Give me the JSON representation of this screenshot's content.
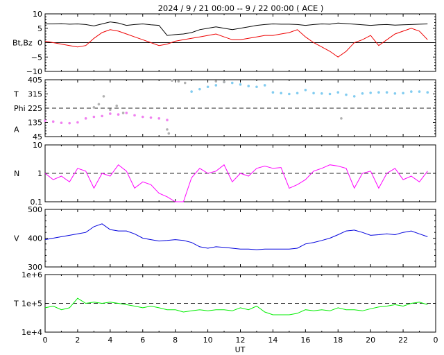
{
  "title": "2024 /  9 / 21   00:00 --  9 / 22   00:00 ( ACE )",
  "xlabel": "UT",
  "chart_data": [
    {
      "type": "line",
      "ylabel": "Bt,Bz",
      "ylim": [
        -10,
        10
      ],
      "yticks": [
        "10",
        "5",
        "0",
        "−5",
        "−10"
      ],
      "reference_line": 0,
      "series": [
        {
          "name": "Bt",
          "color": "#000000",
          "x": [
            0,
            0.5,
            1,
            1.5,
            2,
            2.5,
            3,
            3.5,
            4,
            4.5,
            5,
            5.5,
            6,
            6.5,
            7,
            7.5,
            8,
            8.5,
            9,
            9.5,
            10,
            10.5,
            11,
            11.5,
            12,
            12.5,
            13,
            13.5,
            14,
            14.5,
            15,
            15.5,
            16,
            16.5,
            17,
            17.5,
            18,
            18.5,
            19,
            19.5,
            20,
            20.5,
            21,
            21.5,
            22,
            22.5,
            23,
            23.5
          ],
          "values": [
            6.5,
            6.5,
            6.6,
            6.4,
            6.5,
            6.3,
            5.8,
            6.5,
            7.2,
            6.8,
            6.0,
            6.3,
            6.5,
            6.2,
            6.0,
            2.5,
            2.8,
            3.0,
            3.5,
            4.5,
            5.0,
            5.5,
            5.0,
            4.5,
            5.0,
            5.5,
            6.0,
            6.3,
            6.5,
            6.4,
            6.4,
            6.3,
            6.0,
            6.3,
            6.5,
            6.4,
            6.8,
            6.6,
            6.4,
            6.2,
            6.0,
            6.2,
            6.3,
            6.1,
            6.2,
            6.3,
            6.4,
            6.5
          ]
        },
        {
          "name": "Bz",
          "color": "#ee0000",
          "x": [
            0,
            0.5,
            1,
            1.5,
            2,
            2.5,
            3,
            3.5,
            4,
            4.5,
            5,
            5.5,
            6,
            6.5,
            7,
            7.5,
            8,
            8.5,
            9,
            9.5,
            10,
            10.5,
            11,
            11.5,
            12,
            12.5,
            13,
            13.5,
            14,
            14.5,
            15,
            15.5,
            16,
            16.5,
            17,
            17.5,
            18,
            18.5,
            19,
            19.5,
            20,
            20.5,
            21,
            21.5,
            22,
            22.5,
            23,
            23.5
          ],
          "values": [
            0.5,
            0.0,
            -0.5,
            -1.0,
            -1.5,
            -1.0,
            1.5,
            3.5,
            4.5,
            4.0,
            3.0,
            2.0,
            1.0,
            0.0,
            -1.0,
            -0.5,
            0.5,
            1.0,
            1.5,
            2.0,
            2.5,
            3.0,
            2.0,
            1.0,
            1.0,
            1.5,
            2.0,
            2.5,
            2.5,
            3.0,
            3.5,
            4.5,
            2.0,
            0.0,
            -1.5,
            -3.0,
            -5.0,
            -3.0,
            0.0,
            1.0,
            2.5,
            -1.0,
            1.0,
            3.0,
            4.0,
            5.0,
            4.0,
            1.0
          ]
        }
      ]
    },
    {
      "type": "scatter",
      "ylabel_parts": [
        "T",
        "Phi",
        "A"
      ],
      "ylim": [
        45,
        405
      ],
      "yticks": [
        "405",
        "315",
        "225",
        "135",
        "45"
      ],
      "reference_line": 225,
      "series": [
        {
          "name": "Phi",
          "color": "#82ccf0",
          "x": [
            9,
            9.5,
            10,
            10.5,
            11,
            11.5,
            12,
            12.5,
            13,
            13.5,
            14,
            14.5,
            15,
            15.5,
            16,
            16.5,
            17,
            17.5,
            18,
            18.5,
            19,
            19.5,
            20,
            20.5,
            21,
            21.5,
            22,
            22.5,
            23,
            23.5
          ],
          "values": [
            330,
            345,
            360,
            370,
            390,
            385,
            375,
            365,
            360,
            370,
            325,
            320,
            315,
            320,
            340,
            320,
            318,
            315,
            325,
            310,
            300,
            318,
            322,
            325,
            325,
            318,
            320,
            330,
            330,
            325
          ]
        },
        {
          "name": "Phi",
          "color": "#f080f0",
          "x": [
            0,
            0.5,
            1,
            1.5,
            2,
            2.5,
            3,
            3.5,
            4,
            4.5,
            5,
            5.5,
            6,
            6.5,
            7,
            7.5
          ],
          "values": [
            145,
            140,
            132,
            130,
            135,
            160,
            170,
            175,
            190,
            185,
            195,
            180,
            170,
            165,
            160,
            150
          ]
        },
        {
          "name": "Phi",
          "color": "#b0b0b0",
          "x": [
            3,
            3.3,
            3.6,
            4,
            4.4,
            4.8,
            7.5,
            7.6,
            7.8,
            8.2,
            8.6,
            10.5,
            11,
            18.2
          ],
          "values": [
            230,
            250,
            300,
            215,
            240,
            195,
            90,
            65,
            400,
            395,
            385,
            395,
            390,
            160
          ]
        }
      ]
    },
    {
      "type": "line",
      "ylabel": "N",
      "yscale": "log",
      "ylim": [
        0.1,
        10
      ],
      "yticks": [
        "10",
        "1",
        "0.1"
      ],
      "reference_line": 1,
      "series": [
        {
          "name": "N",
          "color": "#ff00ff",
          "x": [
            0,
            0.5,
            1,
            1.5,
            2,
            2.5,
            3,
            3.5,
            4,
            4.5,
            5,
            5.5,
            6,
            6.5,
            7,
            7.5,
            8,
            8.5,
            9,
            9.5,
            10,
            10.5,
            11,
            11.5,
            12,
            12.5,
            13,
            13.5,
            14,
            14.5,
            15,
            15.5,
            16,
            16.5,
            17,
            17.5,
            18,
            18.5,
            19,
            19.5,
            20,
            20.5,
            21,
            21.5,
            22,
            22.5,
            23,
            23.5
          ],
          "values": [
            1.0,
            0.6,
            0.8,
            0.5,
            1.5,
            1.2,
            0.3,
            1.0,
            0.8,
            2.0,
            1.2,
            0.3,
            0.5,
            0.4,
            0.2,
            0.15,
            0.1,
            0.1,
            0.7,
            1.5,
            1.0,
            1.2,
            2.0,
            0.5,
            1.0,
            0.8,
            1.5,
            1.8,
            1.5,
            1.6,
            0.3,
            0.4,
            0.6,
            1.2,
            1.5,
            2.0,
            1.8,
            1.5,
            0.3,
            1.0,
            1.2,
            0.3,
            1.0,
            1.5,
            0.6,
            0.8,
            0.5,
            1.2
          ]
        }
      ]
    },
    {
      "type": "line",
      "ylabel": "V",
      "ylim": [
        300,
        500
      ],
      "yticks": [
        "500",
        "400",
        "300"
      ],
      "series": [
        {
          "name": "V",
          "color": "#0000dd",
          "x": [
            0,
            0.5,
            1,
            1.5,
            2,
            2.5,
            3,
            3.5,
            4,
            4.5,
            5,
            5.5,
            6,
            6.5,
            7,
            7.5,
            8,
            8.5,
            9,
            9.5,
            10,
            10.5,
            11,
            11.5,
            12,
            12.5,
            13,
            13.5,
            14,
            14.5,
            15,
            15.5,
            16,
            16.5,
            17,
            17.5,
            18,
            18.5,
            19,
            19.5,
            20,
            20.5,
            21,
            21.5,
            22,
            22.5,
            23,
            23.5
          ],
          "values": [
            395,
            400,
            405,
            410,
            415,
            420,
            440,
            450,
            430,
            425,
            425,
            415,
            400,
            395,
            390,
            392,
            395,
            392,
            385,
            370,
            365,
            370,
            368,
            365,
            362,
            362,
            360,
            362,
            362,
            362,
            362,
            365,
            380,
            385,
            392,
            400,
            412,
            425,
            428,
            420,
            410,
            412,
            415,
            412,
            420,
            425,
            415,
            405
          ]
        }
      ]
    },
    {
      "type": "line",
      "ylabel": "T",
      "yscale": "log",
      "ylim": [
        10000,
        1000000
      ],
      "yticks": [
        "1e+6",
        "1e+5",
        "1e+4"
      ],
      "reference_line": 100000,
      "xlim": [
        0,
        24
      ],
      "xticks": [
        "0",
        "2",
        "4",
        "6",
        "8",
        "10",
        "12",
        "14",
        "16",
        "18",
        "20",
        "22",
        "0"
      ],
      "series": [
        {
          "name": "T",
          "color": "#00ee00",
          "x": [
            0,
            0.5,
            1,
            1.5,
            2,
            2.5,
            3,
            3.5,
            4,
            4.5,
            5,
            5.5,
            6,
            6.5,
            7,
            7.5,
            8,
            8.5,
            9,
            9.5,
            10,
            10.5,
            11,
            11.5,
            12,
            12.5,
            13,
            13.5,
            14,
            14.5,
            15,
            15.5,
            16,
            16.5,
            17,
            17.5,
            18,
            18.5,
            19,
            19.5,
            20,
            20.5,
            21,
            21.5,
            22,
            22.5,
            23,
            23.5
          ],
          "values": [
            70000,
            80000,
            60000,
            70000,
            150000,
            100000,
            110000,
            100000,
            110000,
            100000,
            90000,
            80000,
            70000,
            80000,
            70000,
            60000,
            60000,
            50000,
            55000,
            60000,
            55000,
            60000,
            60000,
            55000,
            70000,
            60000,
            80000,
            50000,
            40000,
            40000,
            40000,
            45000,
            60000,
            55000,
            60000,
            55000,
            70000,
            60000,
            60000,
            55000,
            65000,
            75000,
            80000,
            90000,
            80000,
            100000,
            110000,
            90000
          ]
        }
      ]
    }
  ]
}
